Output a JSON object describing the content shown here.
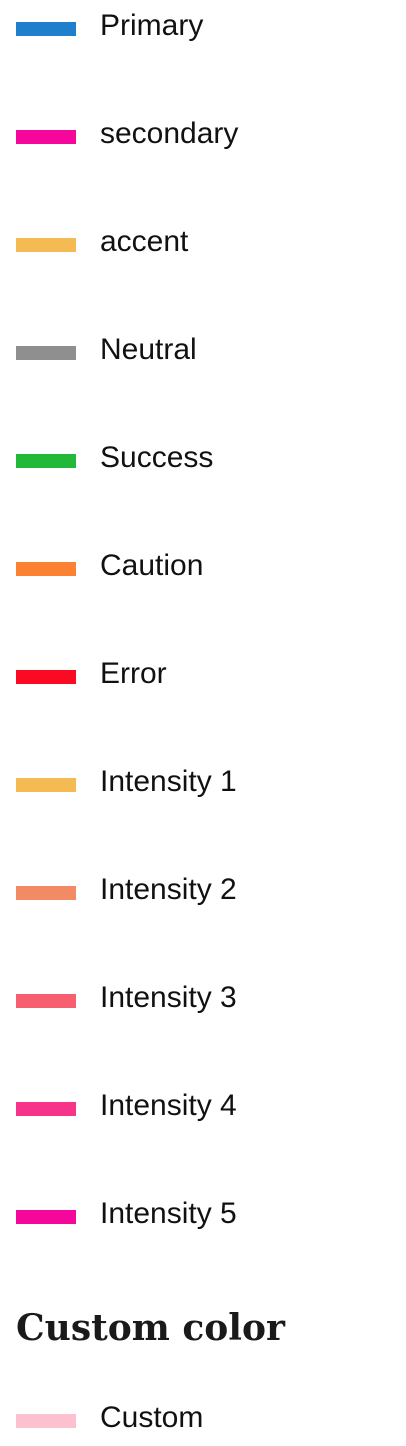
{
  "legend": {
    "items": [
      {
        "label": "Primary",
        "color": "#1f7fcc"
      },
      {
        "label": "secondary",
        "color": "#f5079b"
      },
      {
        "label": "accent",
        "color": "#f4bb55"
      },
      {
        "label": "Neutral",
        "color": "#8f8f8f"
      },
      {
        "label": "Success",
        "color": "#22b83a"
      },
      {
        "label": "Caution",
        "color": "#fb8232"
      },
      {
        "label": "Error",
        "color": "#fb0a23"
      },
      {
        "label": "Intensity 1",
        "color": "#f4bb55"
      },
      {
        "label": "Intensity 2",
        "color": "#f28b65"
      },
      {
        "label": "Intensity 3",
        "color": "#f55f70"
      },
      {
        "label": "Intensity 4",
        "color": "#f7338a"
      },
      {
        "label": "Intensity 5",
        "color": "#f5079b"
      }
    ]
  },
  "custom_section": {
    "title": "Custom color",
    "items": [
      {
        "label": "Custom",
        "color": "#fdc0cf"
      }
    ]
  }
}
